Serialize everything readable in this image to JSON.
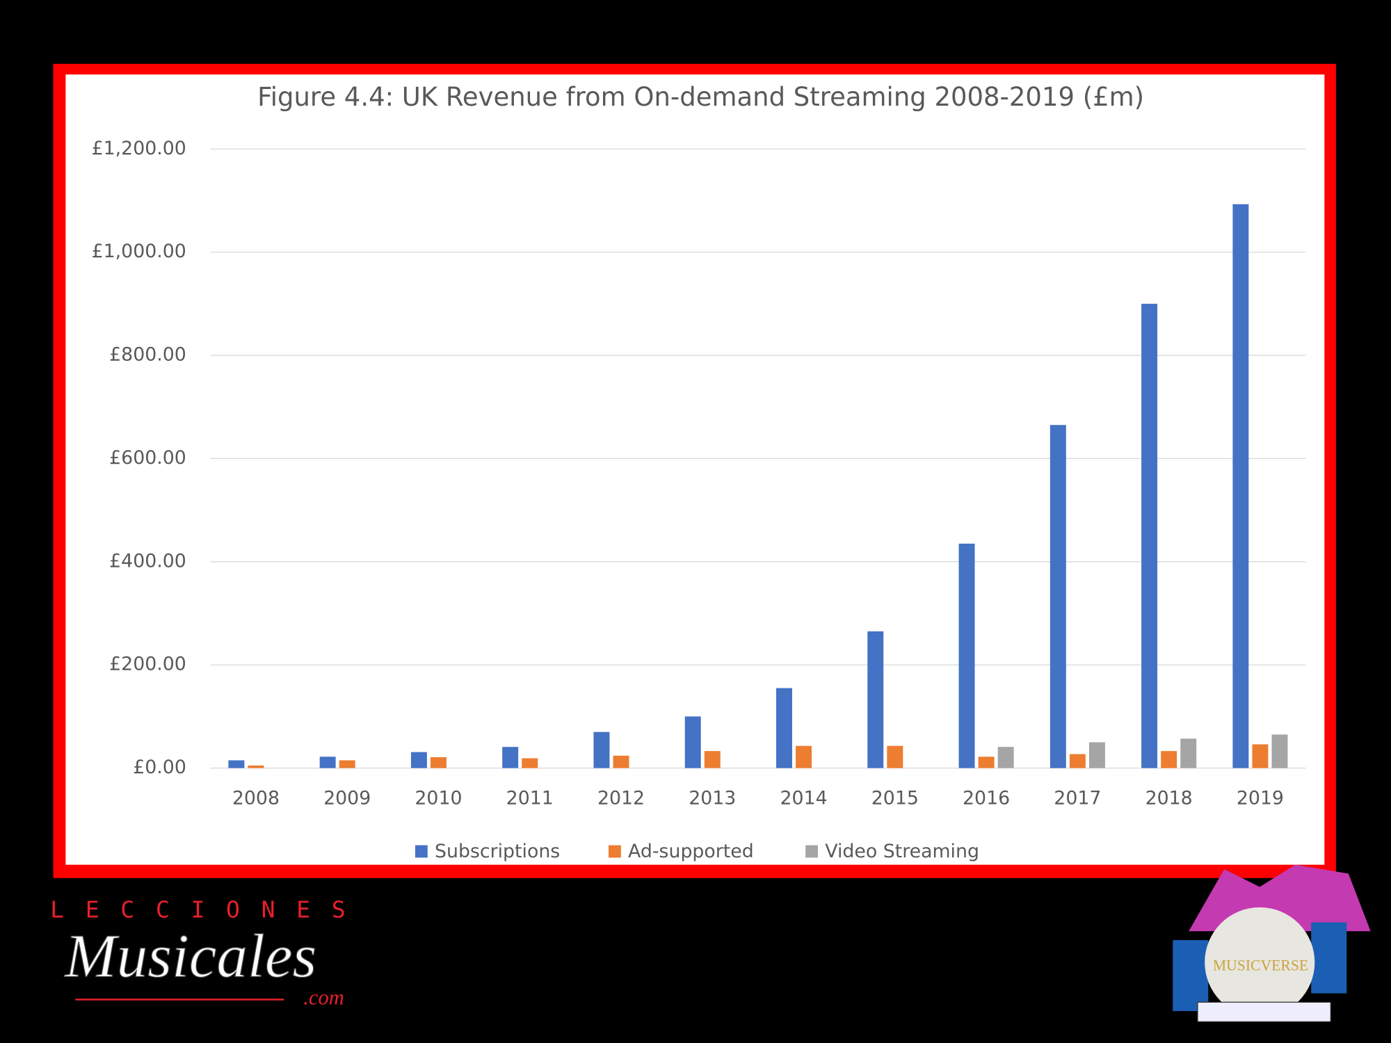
{
  "chart_data": {
    "type": "bar",
    "title": "Figure 4.4: UK Revenue from On-demand Streaming 2008-2019 (£m)",
    "categories": [
      "2008",
      "2009",
      "2010",
      "2011",
      "2012",
      "2013",
      "2014",
      "2015",
      "2016",
      "2017",
      "2018",
      "2019"
    ],
    "series": [
      {
        "name": "Subscriptions",
        "color": "#4472c4",
        "values": [
          15,
          22,
          31,
          41,
          70,
          100,
          155,
          265,
          435,
          665,
          900,
          1093
        ]
      },
      {
        "name": "Ad-supported",
        "color": "#ed7d31",
        "values": [
          5,
          15,
          21,
          19,
          24,
          33,
          43,
          43,
          22,
          27,
          33,
          46
        ]
      },
      {
        "name": "Video Streaming",
        "color": "#a5a5a5",
        "values": [
          null,
          null,
          null,
          null,
          null,
          null,
          null,
          null,
          41,
          50,
          57,
          65
        ]
      }
    ],
    "ylim": [
      0,
      1200
    ],
    "yticks": [
      {
        "value": 0,
        "label": "£0.00"
      },
      {
        "value": 200,
        "label": "£200.00"
      },
      {
        "value": 400,
        "label": "£400.00"
      },
      {
        "value": 600,
        "label": "£600.00"
      },
      {
        "value": 800,
        "label": "£800.00"
      },
      {
        "value": 1000,
        "label": "£1,000.00"
      },
      {
        "value": 1200,
        "label": "£1,200.00"
      }
    ],
    "grid": true,
    "legend": "bottom"
  },
  "logos": {
    "left": {
      "top": "LECCIONES",
      "main": "Musicales",
      "suffix": ".com"
    },
    "right": {
      "main": "MUSICVERSE"
    }
  }
}
